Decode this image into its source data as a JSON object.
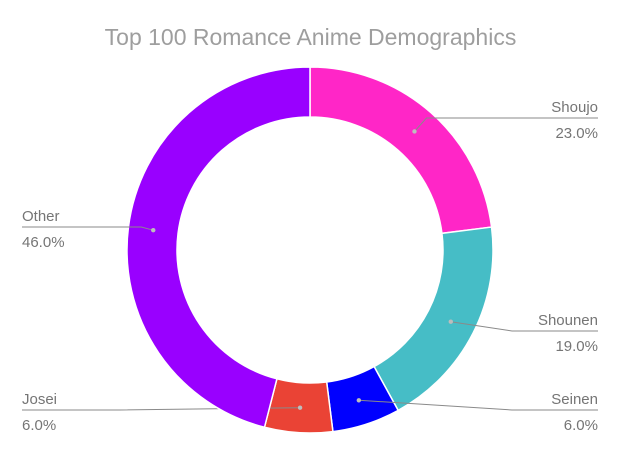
{
  "chart_data": {
    "type": "pie",
    "donut": true,
    "title": "Top 100 Romance Anime Demographics",
    "categories": [
      "Shoujo",
      "Shounen",
      "Seinen",
      "Josei",
      "Other"
    ],
    "values": [
      23.0,
      19.0,
      6.0,
      6.0,
      46.0
    ],
    "value_labels": [
      "23.0%",
      "19.0%",
      "6.0%",
      "6.0%",
      "46.0%"
    ],
    "colors": [
      "#ff26c7",
      "#46bdc6",
      "#0000ff",
      "#ea4335",
      "#9900ff"
    ],
    "label_placement": "outside-with-leader-lines"
  }
}
